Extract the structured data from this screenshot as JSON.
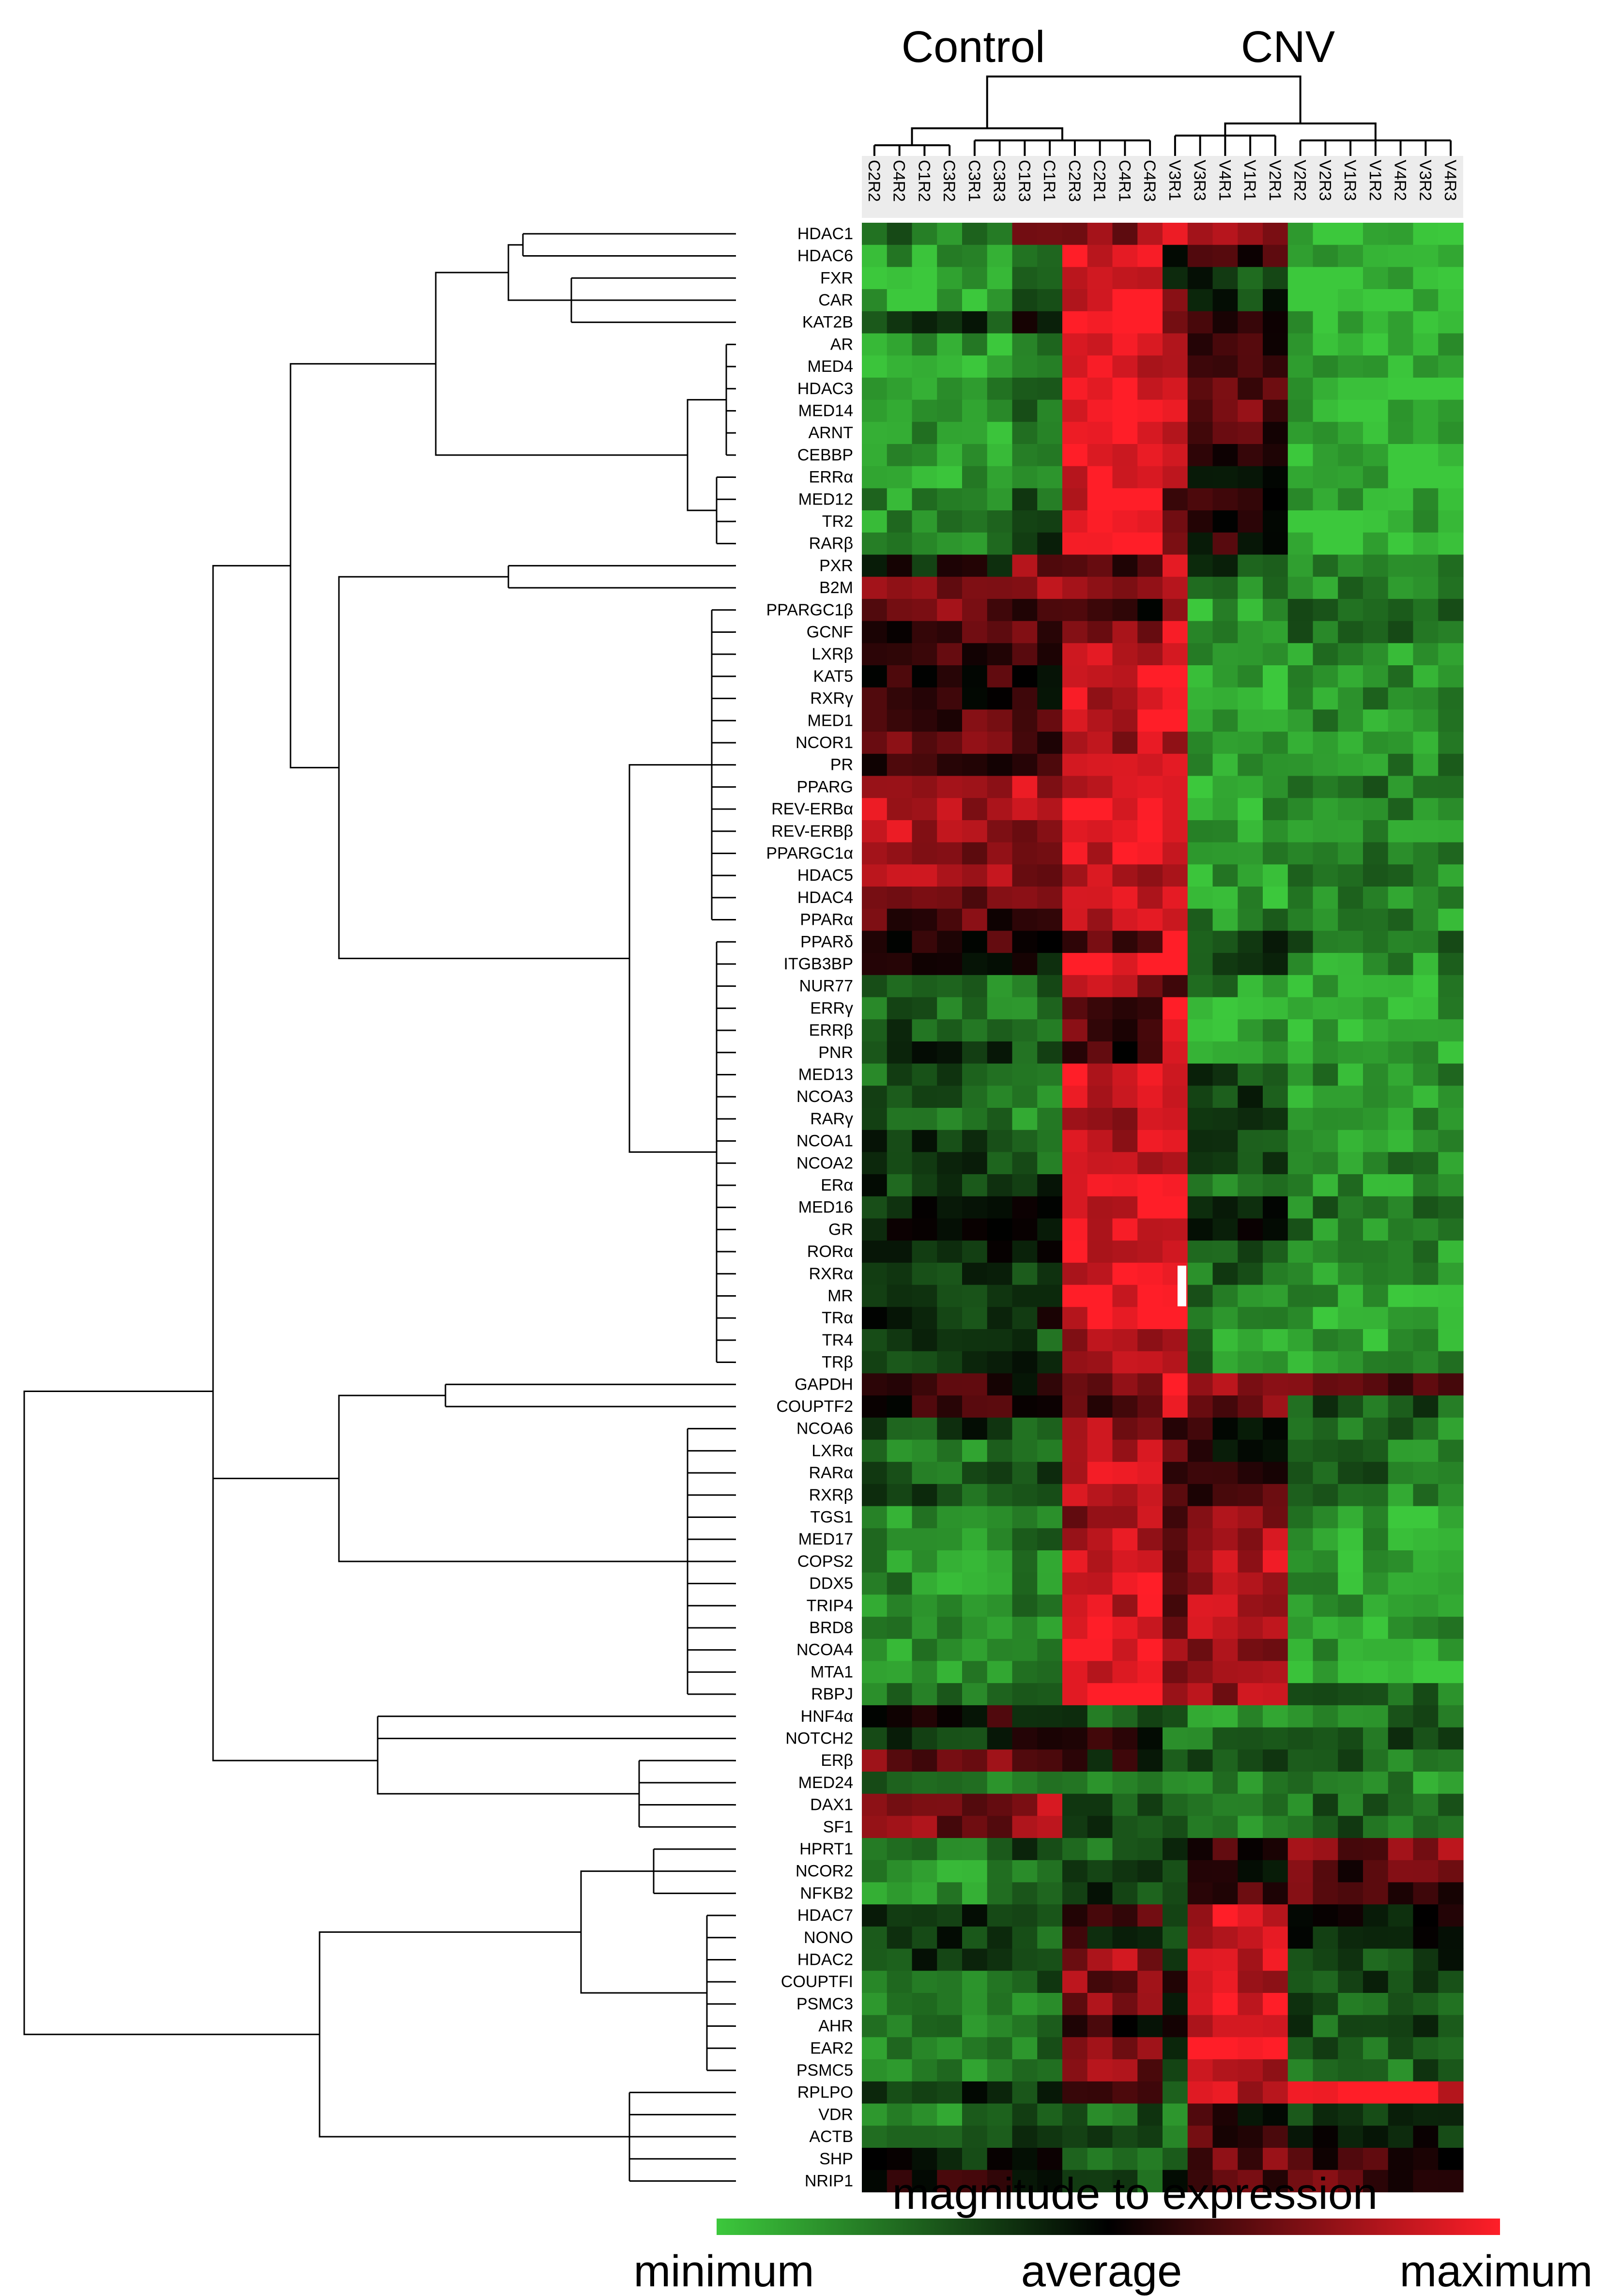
{
  "chart_data": {
    "type": "heatmap",
    "title": "",
    "group_labels": [
      "Control",
      "CNV"
    ],
    "columns": [
      "C2R2",
      "C4R2",
      "C1R2",
      "C3R2",
      "C3R1",
      "C3R3",
      "C1R3",
      "C1R1",
      "C2R3",
      "C2R1",
      "C4R1",
      "C4R3",
      "V3R1",
      "V3R3",
      "V4R1",
      "V1R1",
      "V2R1",
      "V2R2",
      "V2R3",
      "V1R3",
      "V1R2",
      "V4R2",
      "V3R2",
      "V4R3"
    ],
    "rows": [
      "HDAC1",
      "HDAC6",
      "FXR",
      "CAR",
      "KAT2B",
      "AR",
      "MED4",
      "HDAC3",
      "MED14",
      "ARNT",
      "CEBBP",
      "ERRα",
      "MED12",
      "TR2",
      "RARβ",
      "PXR",
      "B2M",
      "PPARGC1β",
      "GCNF",
      "LXRβ",
      "KAT5",
      "RXRγ",
      "MED1",
      "NCOR1",
      "PR",
      "PPARG",
      "REV-ERBα",
      "REV-ERBβ",
      "PPARGC1α",
      "HDAC5",
      "HDAC4",
      "PPARα",
      "PPARδ",
      "ITGB3BP",
      "NUR77",
      "ERRγ",
      "ERRβ",
      "PNR",
      "MED13",
      "NCOA3",
      "RARγ",
      "NCOA1",
      "NCOA2",
      "ERα",
      "MED16",
      "GR",
      "RORα",
      "RXRα",
      "MR",
      "TRα",
      "TR4",
      "TRβ",
      "GAPDH",
      "COUPTF2",
      "NCOA6",
      "LXRα",
      "RARα",
      "RXRβ",
      "TGS1",
      "MED17",
      "COPS2",
      "DDX5",
      "TRIP4",
      "BRD8",
      "NCOA4",
      "MTA1",
      "RBPJ",
      "HNF4α",
      "NOTCH2",
      "ERβ",
      "MED24",
      "DAX1",
      "SF1",
      "HPRT1",
      "NCOR2",
      "NFKB2",
      "HDAC7",
      "NONO",
      "HDAC2",
      "COUPTFI",
      "PSMC3",
      "AHR",
      "EAR2",
      "PSMC5",
      "RPLPO",
      "VDR",
      "ACTB",
      "SHP",
      "NRIP1"
    ],
    "row_profiles": [
      [
        -0.6,
        -0.6,
        0.3,
        0.3,
        0.6,
        1.0,
        0.5,
        -1.0
      ],
      [
        -0.8,
        -0.8,
        -0.4,
        -0.4,
        0.9,
        0.0,
        0.2,
        -0.9
      ],
      [
        -0.8,
        -0.8,
        -0.5,
        -0.5,
        0.6,
        -0.2,
        -0.3,
        -0.9
      ],
      [
        -0.9,
        -0.9,
        -0.5,
        -0.5,
        0.9,
        0.3,
        -0.3,
        -0.9
      ],
      [
        -0.3,
        -0.3,
        0.0,
        0.0,
        0.9,
        0.6,
        0.1,
        -0.8
      ],
      [
        -0.8,
        -0.8,
        -0.7,
        -0.7,
        0.8,
        0.7,
        0.1,
        -0.9
      ],
      [
        -0.8,
        -0.8,
        -0.7,
        -0.7,
        0.9,
        0.8,
        0.3,
        -0.9
      ],
      [
        -0.8,
        -0.8,
        -0.5,
        -0.5,
        1.0,
        0.8,
        0.3,
        -0.9
      ],
      [
        -0.7,
        -0.7,
        -0.5,
        -0.5,
        0.9,
        0.7,
        0.4,
        -0.9
      ],
      [
        -0.8,
        -0.8,
        -0.6,
        -0.6,
        0.9,
        0.7,
        0.2,
        -0.9
      ],
      [
        -0.8,
        -0.8,
        -0.6,
        -0.6,
        0.9,
        0.8,
        0.2,
        -0.9
      ],
      [
        -0.8,
        -0.8,
        -0.6,
        -0.6,
        0.9,
        0.5,
        0.1,
        -0.9
      ],
      [
        -0.7,
        -0.7,
        -0.4,
        -0.4,
        0.9,
        0.4,
        0.1,
        -0.9
      ],
      [
        -0.7,
        -0.7,
        -0.3,
        -0.3,
        0.9,
        0.3,
        0.1,
        -0.9
      ],
      [
        -0.7,
        -0.7,
        -0.3,
        -0.3,
        0.9,
        0.3,
        0.1,
        -0.9
      ],
      [
        -0.1,
        -0.1,
        0.5,
        0.5,
        0.2,
        0.7,
        -0.4,
        -0.7
      ],
      [
        0.4,
        0.4,
        0.6,
        0.6,
        0.6,
        0.9,
        -0.7,
        -0.7
      ],
      [
        0.4,
        0.4,
        0.2,
        0.2,
        0.1,
        0.7,
        -0.8,
        -0.4
      ],
      [
        0.2,
        0.2,
        0.3,
        0.3,
        0.5,
        0.9,
        -0.8,
        -0.6
      ],
      [
        0.3,
        0.3,
        0.3,
        0.3,
        0.8,
        0.9,
        -0.8,
        -0.7
      ],
      [
        0.2,
        0.2,
        0.1,
        0.1,
        0.8,
        0.9,
        -0.8,
        -0.7
      ],
      [
        0.1,
        0.1,
        0.0,
        0.0,
        0.8,
        0.9,
        -0.8,
        -0.7
      ],
      [
        0.3,
        0.3,
        0.2,
        0.2,
        0.8,
        0.9,
        -0.7,
        -0.7
      ],
      [
        0.4,
        0.4,
        0.2,
        0.2,
        0.7,
        0.8,
        -0.6,
        -0.7
      ],
      [
        0.1,
        0.1,
        0.2,
        0.2,
        0.8,
        0.8,
        -0.8,
        -0.7
      ],
      [
        0.6,
        0.6,
        0.7,
        0.7,
        0.9,
        0.9,
        -0.8,
        -0.6
      ],
      [
        0.7,
        0.7,
        0.7,
        0.7,
        1.0,
        0.9,
        -0.8,
        -0.7
      ],
      [
        0.7,
        0.7,
        0.6,
        0.6,
        1.0,
        0.9,
        -0.8,
        -0.7
      ],
      [
        0.6,
        0.6,
        0.4,
        0.4,
        0.8,
        0.9,
        -0.8,
        -0.6
      ],
      [
        0.6,
        0.6,
        0.3,
        0.3,
        0.8,
        0.8,
        -0.8,
        -0.6
      ],
      [
        0.4,
        0.4,
        0.3,
        0.3,
        0.8,
        0.8,
        -0.8,
        -0.7
      ],
      [
        0.3,
        0.3,
        0.3,
        0.3,
        0.7,
        0.8,
        -0.7,
        -0.7
      ],
      [
        0.2,
        0.2,
        0.0,
        0.0,
        0.3,
        0.9,
        -0.3,
        -0.5
      ],
      [
        0.1,
        0.1,
        0.0,
        0.0,
        0.9,
        0.9,
        -0.3,
        -0.7
      ],
      [
        -0.6,
        -0.6,
        -0.5,
        -0.5,
        0.6,
        0.3,
        -0.7,
        -0.8
      ],
      [
        -0.5,
        -0.5,
        -0.6,
        -0.6,
        0.2,
        0.9,
        -0.8,
        -0.8
      ],
      [
        -0.4,
        -0.4,
        -0.6,
        -0.6,
        0.3,
        0.9,
        -0.8,
        -0.8
      ],
      [
        -0.3,
        -0.3,
        -0.5,
        -0.5,
        0.2,
        0.9,
        -0.8,
        -0.8
      ],
      [
        -0.5,
        -0.5,
        -0.5,
        -0.5,
        0.8,
        0.9,
        -0.4,
        -0.7
      ],
      [
        -0.5,
        -0.5,
        -0.6,
        -0.6,
        0.8,
        0.9,
        -0.3,
        -0.7
      ],
      [
        -0.5,
        -0.5,
        -0.6,
        -0.6,
        0.7,
        0.9,
        -0.3,
        -0.8
      ],
      [
        -0.3,
        -0.3,
        -0.4,
        -0.4,
        0.7,
        0.9,
        -0.4,
        -0.7
      ],
      [
        -0.3,
        -0.3,
        -0.4,
        -0.4,
        0.8,
        0.9,
        -0.4,
        -0.7
      ],
      [
        -0.3,
        -0.3,
        -0.3,
        -0.3,
        0.9,
        0.8,
        -0.5,
        -0.7
      ],
      [
        -0.2,
        -0.2,
        -0.2,
        -0.2,
        0.9,
        0.9,
        -0.2,
        -0.6
      ],
      [
        -0.1,
        -0.1,
        -0.2,
        -0.2,
        0.9,
        0.9,
        -0.2,
        -0.6
      ],
      [
        -0.2,
        -0.2,
        -0.2,
        -0.2,
        0.9,
        0.9,
        -0.3,
        -0.7
      ],
      [
        -0.3,
        -0.3,
        -0.3,
        -0.3,
        0.9,
        0.9,
        -0.5,
        -0.8
      ],
      [
        -0.3,
        -0.3,
        -0.2,
        -0.2,
        0.9,
        0.9,
        -0.6,
        -0.8
      ],
      [
        -0.2,
        -0.2,
        -0.1,
        -0.1,
        0.9,
        0.9,
        -0.6,
        -0.8
      ],
      [
        -0.4,
        -0.4,
        -0.4,
        -0.4,
        0.7,
        0.8,
        -0.7,
        -0.8
      ],
      [
        -0.3,
        -0.3,
        -0.3,
        -0.3,
        0.7,
        0.8,
        -0.6,
        -0.8
      ],
      [
        0.3,
        0.3,
        0.1,
        0.1,
        0.5,
        0.9,
        0.5,
        0.4
      ],
      [
        0.2,
        0.2,
        0.0,
        0.0,
        0.2,
        0.9,
        0.5,
        -0.4
      ],
      [
        -0.3,
        -0.3,
        -0.4,
        -0.4,
        0.6,
        0.1,
        0.1,
        -0.6
      ],
      [
        -0.6,
        -0.6,
        -0.5,
        -0.5,
        0.8,
        0.3,
        -0.1,
        -0.6
      ],
      [
        -0.5,
        -0.5,
        -0.4,
        -0.4,
        0.9,
        0.4,
        0.3,
        -0.5
      ],
      [
        -0.4,
        -0.4,
        -0.5,
        -0.5,
        0.8,
        0.3,
        0.2,
        -0.6
      ],
      [
        -0.7,
        -0.7,
        -0.6,
        -0.6,
        0.6,
        0.3,
        0.5,
        -0.8
      ],
      [
        -0.7,
        -0.7,
        -0.6,
        -0.6,
        0.8,
        0.2,
        0.6,
        -0.8
      ],
      [
        -0.7,
        -0.7,
        -0.6,
        -0.6,
        0.8,
        0.2,
        0.7,
        -0.8
      ],
      [
        -0.7,
        -0.7,
        -0.6,
        -0.6,
        0.8,
        0.3,
        0.7,
        -0.8
      ],
      [
        -0.7,
        -0.7,
        -0.6,
        -0.6,
        0.8,
        0.5,
        0.7,
        -0.8
      ],
      [
        -0.7,
        -0.7,
        -0.6,
        -0.6,
        0.8,
        0.5,
        0.7,
        -0.8
      ],
      [
        -0.7,
        -0.7,
        -0.6,
        -0.6,
        0.8,
        0.6,
        0.6,
        -0.8
      ],
      [
        -0.7,
        -0.7,
        -0.5,
        -0.5,
        0.8,
        0.6,
        0.6,
        -0.8
      ],
      [
        -0.5,
        -0.5,
        -0.5,
        -0.5,
        0.9,
        0.7,
        0.6,
        -0.6
      ],
      [
        0.1,
        0.1,
        -0.3,
        -0.3,
        -0.4,
        -0.2,
        -0.8,
        -0.5
      ],
      [
        -0.2,
        -0.2,
        0.3,
        0.3,
        0.1,
        -0.5,
        -0.6,
        -0.4
      ],
      [
        0.4,
        0.4,
        0.3,
        0.3,
        0.0,
        -0.3,
        -0.5,
        -0.5
      ],
      [
        -0.6,
        -0.6,
        -0.6,
        -0.6,
        -0.6,
        -0.6,
        -0.7,
        -0.7
      ],
      [
        0.4,
        0.4,
        0.6,
        0.6,
        -0.3,
        -0.4,
        -0.7,
        -0.5
      ],
      [
        0.5,
        0.5,
        0.6,
        0.6,
        -0.3,
        -0.4,
        -0.7,
        -0.5
      ],
      [
        -0.6,
        -0.6,
        -0.4,
        -0.4,
        -0.5,
        -0.4,
        0.2,
        0.5
      ],
      [
        -0.7,
        -0.7,
        -0.6,
        -0.6,
        -0.3,
        -0.5,
        0.1,
        0.3
      ],
      [
        -0.7,
        -0.7,
        -0.6,
        -0.6,
        -0.3,
        -0.5,
        0.2,
        0.3
      ],
      [
        -0.3,
        -0.3,
        -0.3,
        -0.3,
        0.2,
        -0.4,
        0.8,
        -0.1
      ],
      [
        -0.3,
        -0.3,
        -0.4,
        -0.4,
        0.0,
        -0.5,
        0.8,
        -0.1
      ],
      [
        -0.3,
        -0.3,
        -0.3,
        -0.3,
        0.6,
        -0.3,
        0.8,
        -0.3
      ],
      [
        -0.5,
        -0.5,
        -0.5,
        -0.5,
        0.5,
        0.2,
        0.8,
        -0.3
      ],
      [
        -0.6,
        -0.6,
        -0.6,
        -0.6,
        0.5,
        0.1,
        0.9,
        -0.4
      ],
      [
        -0.7,
        -0.7,
        -0.6,
        -0.6,
        0.1,
        0.0,
        0.9,
        -0.4
      ],
      [
        -0.7,
        -0.7,
        -0.6,
        -0.6,
        0.5,
        0.0,
        0.9,
        -0.5
      ],
      [
        -0.6,
        -0.6,
        -0.6,
        -0.6,
        0.5,
        -0.4,
        0.8,
        -0.5
      ],
      [
        -0.2,
        -0.2,
        -0.3,
        -0.3,
        0.4,
        -0.3,
        0.7,
        0.9
      ],
      [
        -0.6,
        -0.6,
        -0.5,
        -0.5,
        -0.5,
        -0.5,
        0.1,
        -0.3
      ],
      [
        -0.3,
        -0.3,
        -0.3,
        -0.3,
        -0.4,
        -0.5,
        0.3,
        -0.2
      ],
      [
        -0.2,
        -0.2,
        0.0,
        0.0,
        -0.4,
        -0.4,
        0.4,
        0.2
      ],
      [
        0.1,
        0.1,
        -0.1,
        -0.1,
        -0.4,
        -0.3,
        0.3,
        0.3
      ]
    ],
    "legend": {
      "title": "magnitude to expression",
      "min_label": "minimum",
      "mid_label": "average",
      "max_label": "maximum"
    },
    "colors": {
      "min": "#3cc83c",
      "mid": "#000000",
      "max": "#ff1e28"
    }
  }
}
